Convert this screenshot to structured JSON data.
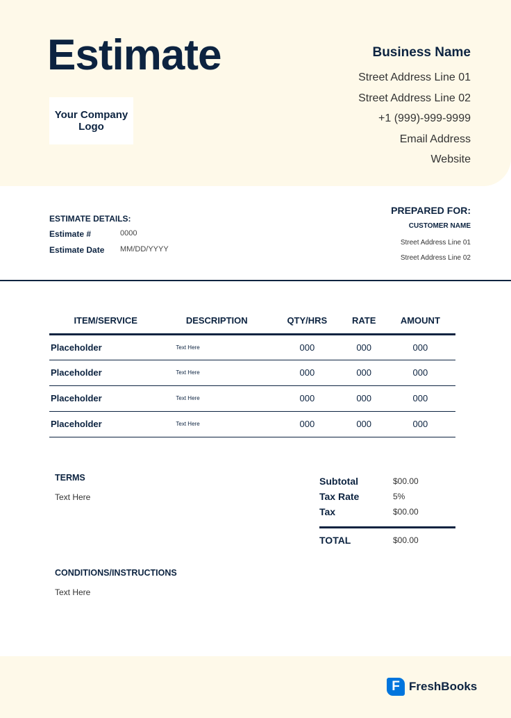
{
  "title": "Estimate",
  "logo": "Your Company Logo",
  "business": {
    "name": "Business Name",
    "lines": [
      "Street Address Line 01",
      "Street Address Line 02",
      "+1 (999)-999-9999",
      "Email Address",
      "Website"
    ]
  },
  "details": {
    "heading": "ESTIMATE DETAILS:",
    "number_label": "Estimate #",
    "number": "0000",
    "date_label": "Estimate Date",
    "date": "MM/DD/YYYY"
  },
  "prepared": {
    "heading": "PREPARED FOR:",
    "customer": "CUSTOMER NAME",
    "lines": [
      "Street Address Line 01",
      "Street Address Line 02"
    ]
  },
  "table": {
    "headers": [
      "ITEM/SERVICE",
      "DESCRIPTION",
      "QTY/HRS",
      "RATE",
      "AMOUNT"
    ],
    "rows": [
      [
        "Placeholder",
        "Text Here",
        "000",
        "000",
        "000"
      ],
      [
        "Placeholder",
        "Text Here",
        "000",
        "000",
        "000"
      ],
      [
        "Placeholder",
        "Text Here",
        "000",
        "000",
        "000"
      ],
      [
        "Placeholder",
        "Text Here",
        "000",
        "000",
        "000"
      ]
    ]
  },
  "terms": {
    "heading": "TERMS",
    "text": "Text Here"
  },
  "conditions": {
    "heading": "CONDITIONS/INSTRUCTIONS",
    "text": "Text Here"
  },
  "totals": {
    "subtotal_label": "Subtotal",
    "subtotal": "$00.00",
    "tax_rate_label": "Tax Rate",
    "tax_rate": "5%",
    "tax_label": "Tax",
    "tax": "$00.00",
    "total_label": "TOTAL",
    "total": "$00.00"
  },
  "brand": {
    "name": "FreshBooks",
    "icon_letter": "F",
    "color": "#0075dd"
  }
}
